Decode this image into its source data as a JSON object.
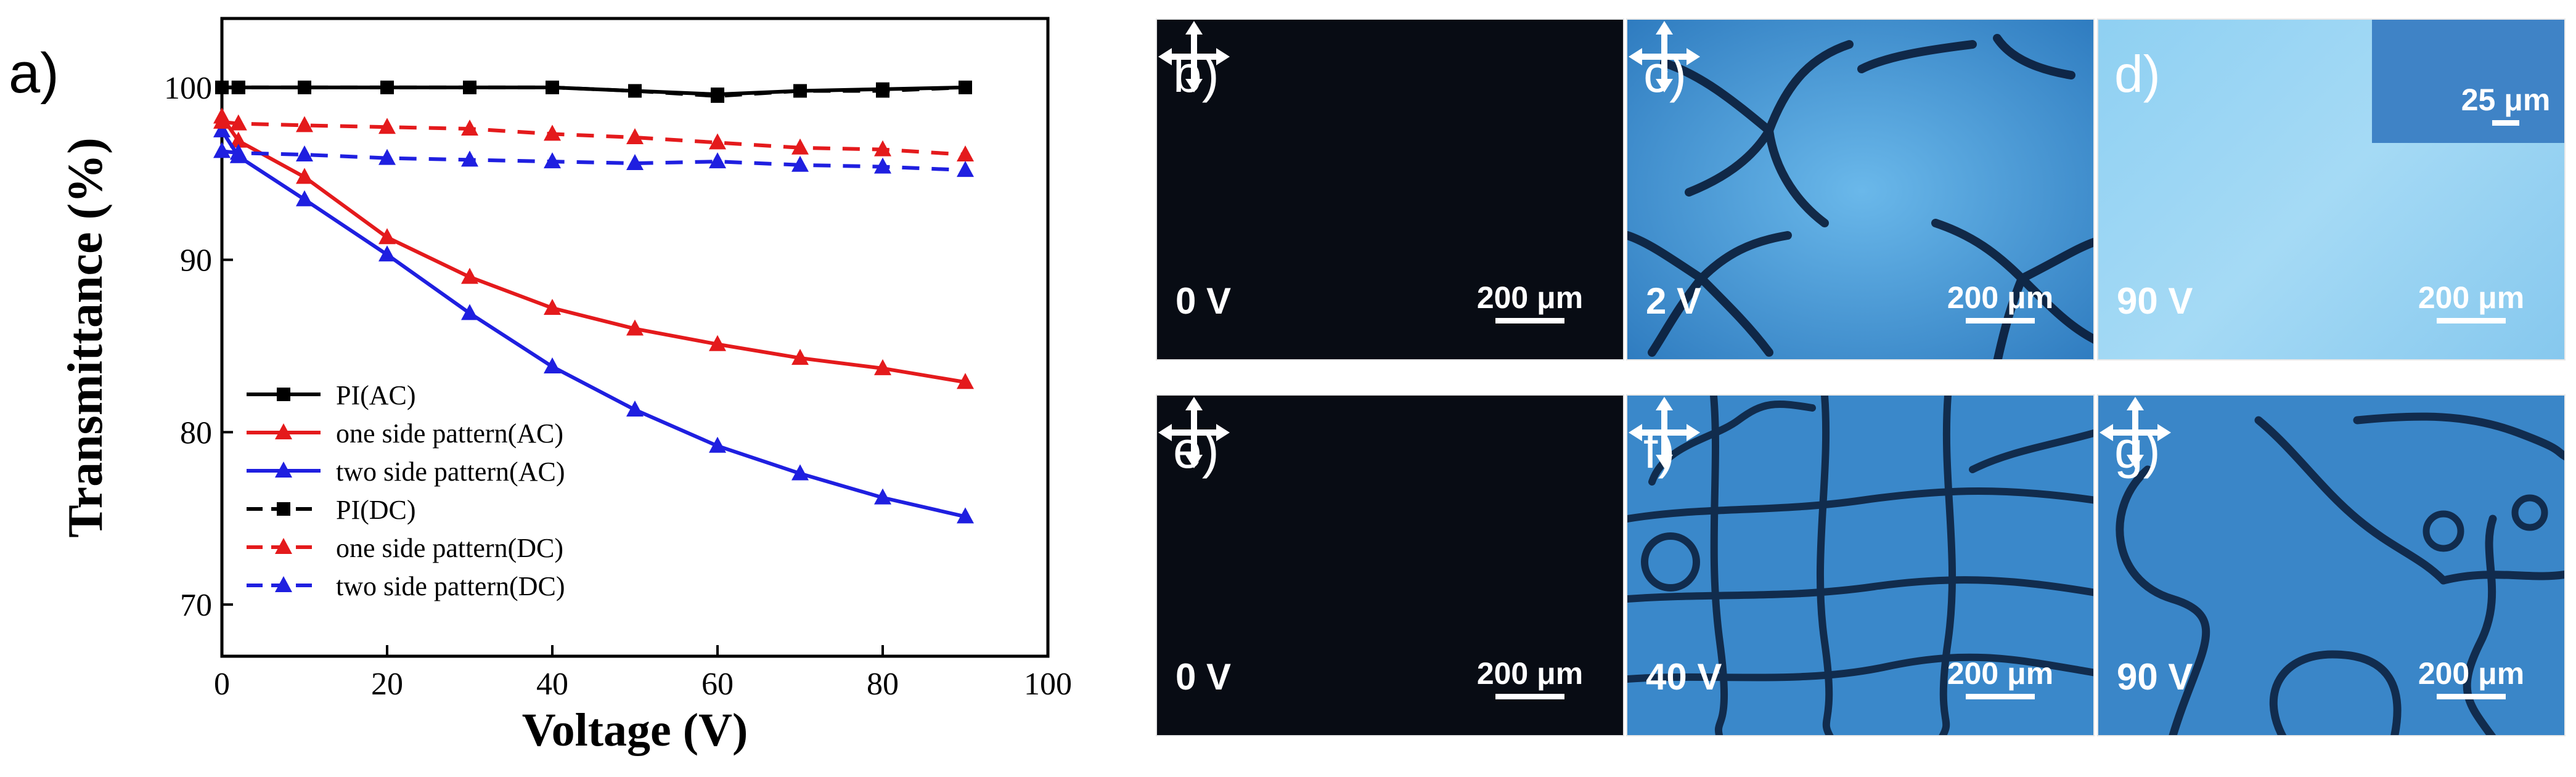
{
  "chart_data": {
    "type": "line",
    "panel_label": "a)",
    "xlabel": "Voltage (V)",
    "ylabel": "Transmittance (%)",
    "xlim": [
      0,
      100
    ],
    "ylim": [
      67,
      104
    ],
    "xticks": [
      0,
      20,
      40,
      60,
      80,
      100
    ],
    "yticks": [
      70,
      80,
      90,
      100
    ],
    "legend_position": "bottom-left",
    "series": [
      {
        "name": "PI(AC)",
        "color": "#000000",
        "dash": false,
        "marker": "square",
        "x": [
          0,
          2,
          10,
          20,
          30,
          40,
          50,
          60,
          70,
          80,
          90
        ],
        "y": [
          100,
          100,
          100,
          100,
          100,
          100,
          99.8,
          99.6,
          99.8,
          99.9,
          100
        ]
      },
      {
        "name": "one side pattern(AC)",
        "color": "#e41a1c",
        "dash": false,
        "marker": "triangle",
        "x": [
          0,
          2,
          10,
          20,
          30,
          40,
          50,
          60,
          70,
          80,
          90
        ],
        "y": [
          98.3,
          96.9,
          94.8,
          91.3,
          89.0,
          87.2,
          86.0,
          85.1,
          84.3,
          83.7,
          82.9
        ]
      },
      {
        "name": "two side pattern(AC)",
        "color": "#1f1fe0",
        "dash": false,
        "marker": "triangle",
        "x": [
          0,
          2,
          10,
          20,
          30,
          40,
          50,
          60,
          70,
          80,
          90
        ],
        "y": [
          97.5,
          96.0,
          93.5,
          90.3,
          86.9,
          83.8,
          81.3,
          79.2,
          77.6,
          76.2,
          75.1
        ]
      },
      {
        "name": "PI(DC)",
        "color": "#000000",
        "dash": true,
        "marker": "square",
        "x": [
          0,
          2,
          10,
          20,
          30,
          40,
          50,
          60,
          70,
          80,
          90
        ],
        "y": [
          100,
          100,
          100,
          100,
          100,
          100,
          99.8,
          99.5,
          99.8,
          99.8,
          100
        ]
      },
      {
        "name": "one side pattern(DC)",
        "color": "#e41a1c",
        "dash": true,
        "marker": "triangle",
        "x": [
          0,
          2,
          10,
          20,
          30,
          40,
          50,
          60,
          70,
          80,
          90
        ],
        "y": [
          98.0,
          97.9,
          97.8,
          97.7,
          97.6,
          97.3,
          97.1,
          96.8,
          96.5,
          96.4,
          96.1
        ]
      },
      {
        "name": "two side pattern(DC)",
        "color": "#1f1fe0",
        "dash": true,
        "marker": "triangle",
        "x": [
          0,
          2,
          10,
          20,
          30,
          40,
          50,
          60,
          70,
          80,
          90
        ],
        "y": [
          96.3,
          96.2,
          96.1,
          95.9,
          95.8,
          95.7,
          95.6,
          95.7,
          95.5,
          95.4,
          95.2
        ]
      }
    ]
  },
  "micrographs": {
    "b": {
      "label": "b)",
      "voltage": "0 V",
      "scale": "200 μm",
      "arrows_icon": "crossed-double-arrows"
    },
    "c": {
      "label": "c)",
      "voltage": "2 V",
      "scale": "200 μm",
      "arrows_icon": "crossed-double-arrows"
    },
    "d": {
      "label": "d)",
      "voltage": "90 V",
      "scale": "200 μm",
      "inset_scale": "25 μm"
    },
    "e": {
      "label": "e)",
      "voltage": "0 V",
      "scale": "200 μm",
      "arrows_icon": "crossed-double-arrows"
    },
    "f": {
      "label": "f)",
      "voltage": "40 V",
      "scale": "200 μm",
      "arrows_icon": "crossed-double-arrows"
    },
    "g": {
      "label": "g)",
      "voltage": "90 V",
      "scale": "200 μm",
      "arrows_icon": "crossed-double-arrows"
    }
  },
  "colors": {
    "dark_panel": "#080c14",
    "lc_blue": "#3f8fd2",
    "lc_light": "#8fd0f2",
    "defect_dark": "#0a1c38"
  }
}
